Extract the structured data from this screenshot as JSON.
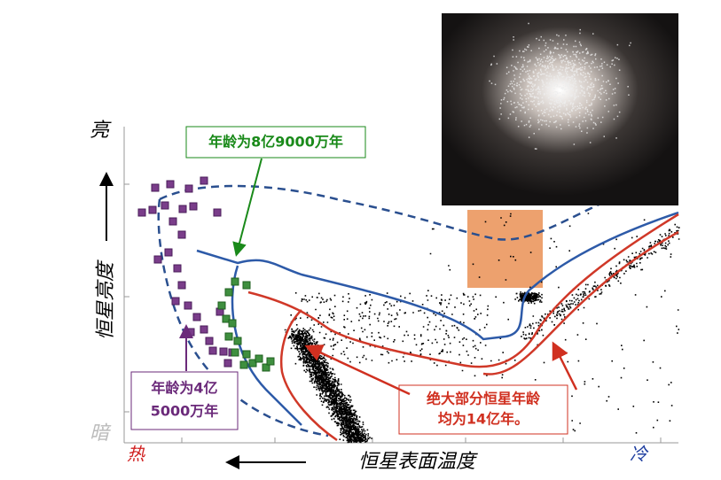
{
  "axis": {
    "bright": "亮",
    "dim": "暗",
    "y_title": "恒星亮度",
    "hot": "热",
    "cold": "冷",
    "x_title": "恒星表面温度"
  },
  "annotations": {
    "green": "年龄为8亿9000万年",
    "purple": [
      "年龄为4亿",
      "5000万年"
    ],
    "red": [
      "绝大部分恒星年龄",
      "均为14亿年。"
    ]
  }
}
